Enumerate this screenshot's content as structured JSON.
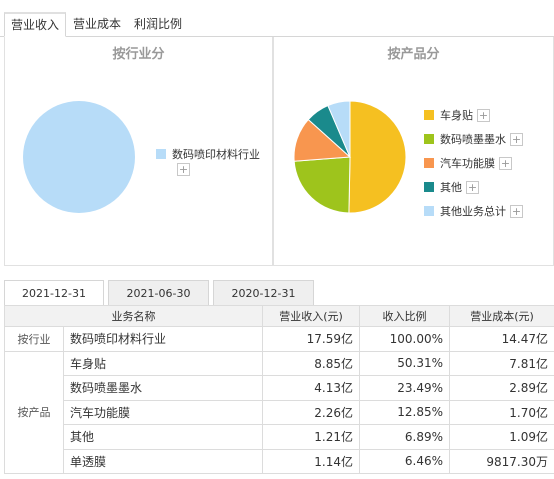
{
  "tabs": [
    "营业收入",
    "营业成本",
    "利润比例"
  ],
  "industry_chart": {
    "title": "按行业分",
    "plus": "+",
    "legend": [
      {
        "name": "数码喷印材料行业",
        "color": "#b7dcf8"
      }
    ]
  },
  "product_chart": {
    "title": "按产品分",
    "plus": "+",
    "legend": [
      {
        "name": "车身贴",
        "color": "#f5c021"
      },
      {
        "name": "数码喷墨墨水",
        "color": "#9ec41c"
      },
      {
        "name": "汽车功能膜",
        "color": "#f8964f"
      },
      {
        "name": "其他",
        "color": "#1a8a8c"
      },
      {
        "name": "其他业务总计",
        "color": "#b7dcf8"
      }
    ]
  },
  "chart_data": [
    {
      "type": "pie",
      "title": "按行业分",
      "labels": [
        "数码喷印材料行业"
      ],
      "values": [
        100.0
      ]
    },
    {
      "type": "pie",
      "title": "按产品分",
      "labels": [
        "车身贴",
        "数码喷墨墨水",
        "汽车功能膜",
        "其他",
        "其他业务总计"
      ],
      "values": [
        50.31,
        23.49,
        12.85,
        6.89,
        6.46
      ]
    }
  ],
  "date_tabs": [
    "2021-12-31",
    "2021-06-30",
    "2020-12-31"
  ],
  "table": {
    "headers": [
      "业务名称",
      "营业收入(元)",
      "收入比例",
      "营业成本(元)"
    ],
    "group_industry": "按行业",
    "group_product": "按产品",
    "rows": [
      {
        "name": "数码喷印材料行业",
        "revenue": "17.59亿",
        "ratio": "100.00%",
        "cost": "14.47亿"
      },
      {
        "name": "车身贴",
        "revenue": "8.85亿",
        "ratio": "50.31%",
        "cost": "7.81亿"
      },
      {
        "name": "数码喷墨墨水",
        "revenue": "4.13亿",
        "ratio": "23.49%",
        "cost": "2.89亿"
      },
      {
        "name": "汽车功能膜",
        "revenue": "2.26亿",
        "ratio": "12.85%",
        "cost": "1.70亿"
      },
      {
        "name": "其他",
        "revenue": "1.21亿",
        "ratio": "6.89%",
        "cost": "1.09亿"
      },
      {
        "name": "单透膜",
        "revenue": "1.14亿",
        "ratio": "6.46%",
        "cost": "9817.30万"
      }
    ]
  }
}
